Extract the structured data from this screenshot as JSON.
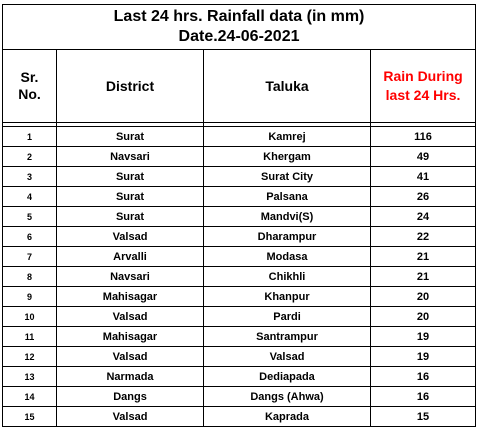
{
  "title": {
    "line1": "Last 24 hrs. Rainfall data (in mm)",
    "line2": "Date.24-06-2021"
  },
  "headers": {
    "sr_line1": "Sr.",
    "sr_line2": "No.",
    "district": "District",
    "taluka": "Taluka",
    "rain_line1": "Rain During",
    "rain_line2": "last 24 Hrs."
  },
  "colors": {
    "rain_header": "#ff0000",
    "border": "#000000"
  },
  "rows": [
    {
      "sr": "1",
      "district": "Surat",
      "taluka": "Kamrej",
      "rain": "116"
    },
    {
      "sr": "2",
      "district": "Navsari",
      "taluka": "Khergam",
      "rain": "49"
    },
    {
      "sr": "3",
      "district": "Surat",
      "taluka": "Surat City",
      "rain": "41"
    },
    {
      "sr": "4",
      "district": "Surat",
      "taluka": "Palsana",
      "rain": "26"
    },
    {
      "sr": "5",
      "district": "Surat",
      "taluka": "Mandvi(S)",
      "rain": "24"
    },
    {
      "sr": "6",
      "district": "Valsad",
      "taluka": "Dharampur",
      "rain": "22"
    },
    {
      "sr": "7",
      "district": "Arvalli",
      "taluka": "Modasa",
      "rain": "21"
    },
    {
      "sr": "8",
      "district": "Navsari",
      "taluka": "Chikhli",
      "rain": "21"
    },
    {
      "sr": "9",
      "district": "Mahisagar",
      "taluka": "Khanpur",
      "rain": "20"
    },
    {
      "sr": "10",
      "district": "Valsad",
      "taluka": "Pardi",
      "rain": "20"
    },
    {
      "sr": "11",
      "district": "Mahisagar",
      "taluka": "Santrampur",
      "rain": "19"
    },
    {
      "sr": "12",
      "district": "Valsad",
      "taluka": "Valsad",
      "rain": "19"
    },
    {
      "sr": "13",
      "district": "Narmada",
      "taluka": "Dediapada",
      "rain": "16"
    },
    {
      "sr": "14",
      "district": "Dangs",
      "taluka": "Dangs (Ahwa)",
      "rain": "16"
    },
    {
      "sr": "15",
      "district": "Valsad",
      "taluka": "Kaprada",
      "rain": "15"
    }
  ]
}
